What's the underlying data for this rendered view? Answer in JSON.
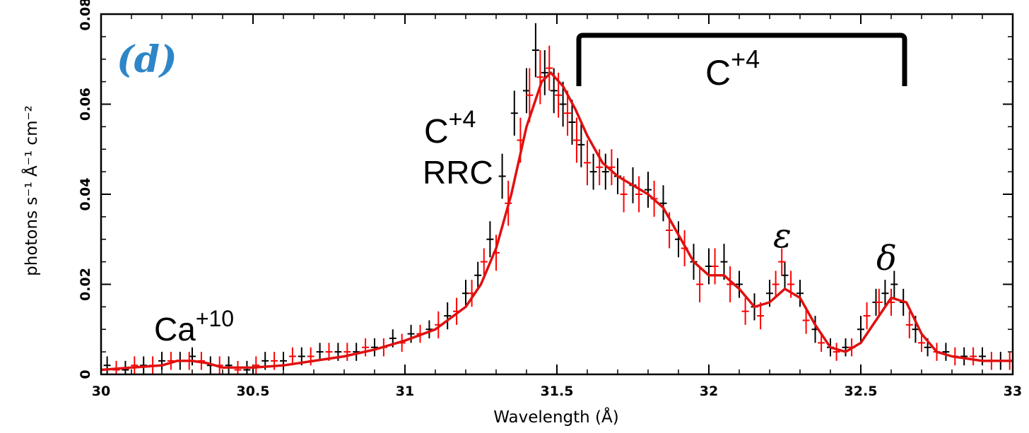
{
  "chart_data": {
    "type": "line",
    "title": "",
    "panel_label": "(d)",
    "xlabel": "Wavelength (Å)",
    "ylabel": "photons s⁻¹ Å⁻¹ cm⁻²",
    "xlim": [
      30,
      33
    ],
    "ylim": [
      0,
      0.08
    ],
    "grid": false,
    "xticks": [
      {
        "value": 30,
        "label": "30"
      },
      {
        "value": 30.5,
        "label": "30.5"
      },
      {
        "value": 31,
        "label": "31"
      },
      {
        "value": 31.5,
        "label": "31.5"
      },
      {
        "value": 32,
        "label": "32"
      },
      {
        "value": 32.5,
        "label": "32.5"
      },
      {
        "value": 33,
        "label": "33"
      }
    ],
    "yticks": [
      {
        "value": 0,
        "label": "0"
      },
      {
        "value": 0.02,
        "label": "0.02"
      },
      {
        "value": 0.04,
        "label": "0.04"
      },
      {
        "value": 0.06,
        "label": "0.06"
      },
      {
        "value": 0.08,
        "label": "0.08"
      }
    ],
    "series": [
      {
        "name": "data-black",
        "kind": "errorbar",
        "color": "#000000",
        "x": [
          30.02,
          30.08,
          30.14,
          30.2,
          30.26,
          30.3,
          30.36,
          30.42,
          30.48,
          30.54,
          30.6,
          30.66,
          30.72,
          30.78,
          30.84,
          30.9,
          30.96,
          31.02,
          31.08,
          31.14,
          31.2,
          31.24,
          31.28,
          31.32,
          31.36,
          31.4,
          31.43,
          31.46,
          31.49,
          31.52,
          31.55,
          31.58,
          31.62,
          31.66,
          31.7,
          31.75,
          31.8,
          31.85,
          31.9,
          31.95,
          32.0,
          32.05,
          32.1,
          32.15,
          32.2,
          32.25,
          32.3,
          32.35,
          32.4,
          32.45,
          32.5,
          32.55,
          32.58,
          32.61,
          32.64,
          32.68,
          32.72,
          32.78,
          32.84,
          32.9,
          32.96
        ],
        "y": [
          0.002,
          0.001,
          0.002,
          0.003,
          0.003,
          0.004,
          0.002,
          0.002,
          0.001,
          0.003,
          0.003,
          0.004,
          0.005,
          0.005,
          0.005,
          0.006,
          0.008,
          0.009,
          0.01,
          0.013,
          0.018,
          0.022,
          0.03,
          0.044,
          0.058,
          0.063,
          0.072,
          0.067,
          0.063,
          0.06,
          0.056,
          0.051,
          0.045,
          0.045,
          0.044,
          0.042,
          0.041,
          0.038,
          0.03,
          0.025,
          0.024,
          0.025,
          0.02,
          0.015,
          0.018,
          0.022,
          0.018,
          0.01,
          0.006,
          0.006,
          0.01,
          0.016,
          0.018,
          0.02,
          0.016,
          0.01,
          0.006,
          0.005,
          0.004,
          0.004,
          0.003
        ],
        "err": [
          0.002,
          0.002,
          0.002,
          0.002,
          0.002,
          0.002,
          0.002,
          0.002,
          0.002,
          0.002,
          0.002,
          0.002,
          0.002,
          0.002,
          0.002,
          0.002,
          0.002,
          0.002,
          0.002,
          0.003,
          0.003,
          0.003,
          0.004,
          0.005,
          0.005,
          0.005,
          0.006,
          0.005,
          0.005,
          0.005,
          0.005,
          0.005,
          0.004,
          0.004,
          0.004,
          0.004,
          0.004,
          0.004,
          0.004,
          0.004,
          0.004,
          0.004,
          0.003,
          0.003,
          0.003,
          0.003,
          0.003,
          0.003,
          0.002,
          0.002,
          0.003,
          0.003,
          0.003,
          0.003,
          0.003,
          0.003,
          0.002,
          0.002,
          0.002,
          0.002,
          0.002
        ]
      },
      {
        "name": "data-red",
        "kind": "errorbar",
        "color": "#ff0000",
        "x": [
          30.05,
          30.11,
          30.17,
          30.23,
          30.29,
          30.33,
          30.39,
          30.45,
          30.51,
          30.57,
          30.63,
          30.69,
          30.75,
          30.81,
          30.87,
          30.93,
          30.99,
          31.05,
          31.11,
          31.17,
          31.22,
          31.26,
          31.3,
          31.34,
          31.38,
          31.41,
          31.445,
          31.475,
          31.505,
          31.535,
          31.565,
          31.6,
          31.64,
          31.68,
          31.72,
          31.77,
          31.82,
          31.87,
          31.92,
          31.97,
          32.02,
          32.07,
          32.12,
          32.17,
          32.22,
          32.24,
          32.27,
          32.32,
          32.37,
          32.42,
          32.47,
          32.52,
          32.56,
          32.6,
          32.66,
          32.7,
          32.75,
          32.81,
          32.87,
          32.93,
          32.99
        ],
        "y": [
          0.001,
          0.002,
          0.002,
          0.003,
          0.003,
          0.003,
          0.002,
          0.001,
          0.002,
          0.003,
          0.004,
          0.004,
          0.005,
          0.005,
          0.006,
          0.006,
          0.007,
          0.009,
          0.011,
          0.014,
          0.018,
          0.025,
          0.027,
          0.038,
          0.052,
          0.062,
          0.066,
          0.068,
          0.062,
          0.058,
          0.052,
          0.047,
          0.046,
          0.046,
          0.04,
          0.04,
          0.039,
          0.032,
          0.028,
          0.02,
          0.024,
          0.02,
          0.014,
          0.013,
          0.02,
          0.025,
          0.02,
          0.012,
          0.007,
          0.005,
          0.006,
          0.013,
          0.016,
          0.016,
          0.011,
          0.007,
          0.005,
          0.004,
          0.004,
          0.003,
          0.003
        ],
        "err": [
          0.002,
          0.002,
          0.002,
          0.002,
          0.002,
          0.002,
          0.002,
          0.002,
          0.002,
          0.002,
          0.002,
          0.002,
          0.002,
          0.002,
          0.002,
          0.002,
          0.002,
          0.002,
          0.003,
          0.003,
          0.003,
          0.003,
          0.004,
          0.005,
          0.005,
          0.006,
          0.006,
          0.005,
          0.005,
          0.005,
          0.005,
          0.005,
          0.004,
          0.004,
          0.004,
          0.004,
          0.004,
          0.004,
          0.004,
          0.004,
          0.004,
          0.004,
          0.003,
          0.003,
          0.003,
          0.003,
          0.003,
          0.003,
          0.002,
          0.002,
          0.002,
          0.003,
          0.003,
          0.003,
          0.003,
          0.002,
          0.002,
          0.002,
          0.002,
          0.002,
          0.002
        ]
      },
      {
        "name": "model",
        "kind": "line",
        "color": "#e01010",
        "x": [
          30.0,
          30.1,
          30.2,
          30.25,
          30.3,
          30.35,
          30.4,
          30.5,
          30.6,
          30.7,
          30.8,
          30.9,
          31.0,
          31.1,
          31.2,
          31.25,
          31.3,
          31.35,
          31.4,
          31.45,
          31.48,
          31.52,
          31.56,
          31.6,
          31.65,
          31.7,
          31.75,
          31.8,
          31.85,
          31.9,
          31.95,
          32.0,
          32.05,
          32.1,
          32.15,
          32.2,
          32.25,
          32.3,
          32.35,
          32.4,
          32.45,
          32.5,
          32.55,
          32.6,
          32.65,
          32.7,
          32.75,
          32.8,
          32.9,
          33.0
        ],
        "y": [
          0.001,
          0.0015,
          0.002,
          0.003,
          0.003,
          0.0025,
          0.0015,
          0.0015,
          0.002,
          0.003,
          0.004,
          0.0055,
          0.0075,
          0.01,
          0.015,
          0.02,
          0.028,
          0.04,
          0.055,
          0.065,
          0.067,
          0.064,
          0.059,
          0.053,
          0.047,
          0.044,
          0.042,
          0.04,
          0.037,
          0.031,
          0.025,
          0.022,
          0.022,
          0.019,
          0.015,
          0.016,
          0.019,
          0.017,
          0.011,
          0.006,
          0.005,
          0.007,
          0.012,
          0.017,
          0.016,
          0.009,
          0.005,
          0.004,
          0.003,
          0.003
        ]
      }
    ],
    "annotations": {
      "ca_label_base": "Ca",
      "ca_label_sup": "+10",
      "rrc_label_base": "C",
      "rrc_label_sup": "+4",
      "rrc_label_line2": "RRC",
      "bracket_label_base": "C",
      "bracket_label_sup": "+4",
      "epsilon": "ε",
      "delta": "δ"
    }
  }
}
